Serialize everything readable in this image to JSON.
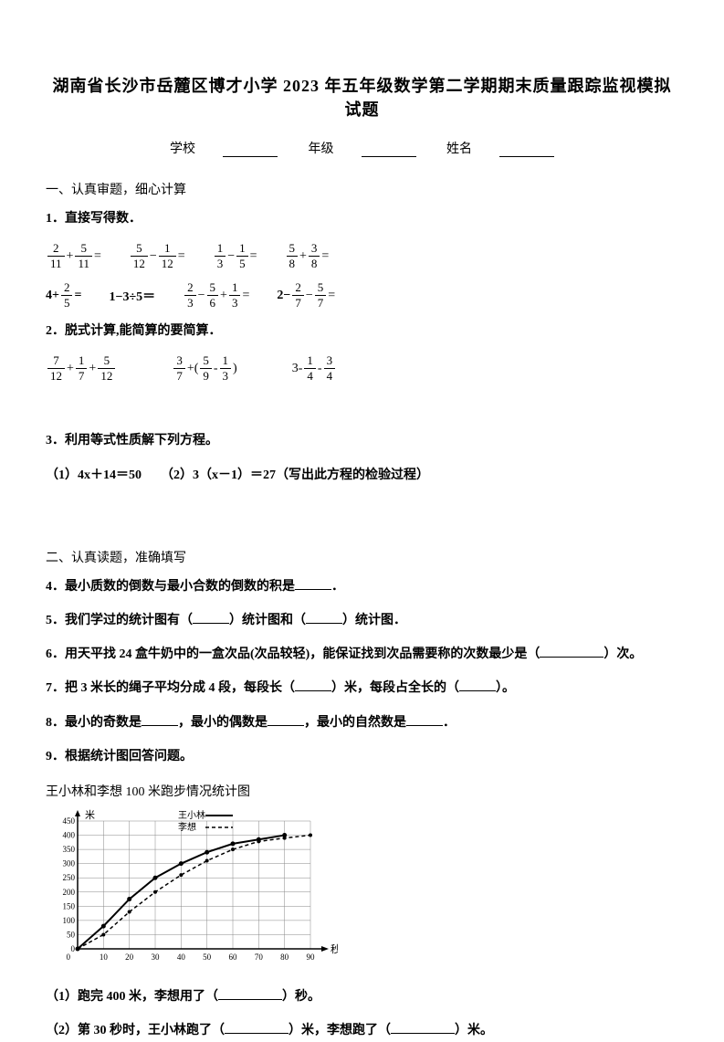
{
  "title": "湖南省长沙市岳麓区博才小学 2023 年五年级数学第二学期期末质量跟踪监视模拟试题",
  "header": {
    "school_label": "学校",
    "grade_label": "年级",
    "name_label": "姓名"
  },
  "section1": {
    "title": "一、认真审题，细心计算",
    "q1": {
      "label": "1．直接写得数．",
      "exprs": [
        {
          "n1": "2",
          "d1": "11",
          "op": "+",
          "n2": "5",
          "d2": "11",
          "eq": "="
        },
        {
          "n1": "5",
          "d1": "12",
          "op": "−",
          "n2": "1",
          "d2": "12",
          "eq": "="
        },
        {
          "n1": "1",
          "d1": "3",
          "op": "−",
          "n2": "1",
          "d2": "5",
          "eq": "="
        },
        {
          "n1": "5",
          "d1": "8",
          "op": "+",
          "n2": "3",
          "d2": "8",
          "eq": "="
        }
      ],
      "exprs2": [
        {
          "pre": "4+",
          "n1": "2",
          "d1": "5",
          "eq": "="
        },
        {
          "text": "1−3÷5＝"
        },
        {
          "n1": "2",
          "d1": "3",
          "op": "−",
          "n2": "5",
          "d2": "6",
          "op2": "+",
          "n3": "1",
          "d3": "3",
          "eq": "="
        },
        {
          "pre": "2−",
          "n1": "2",
          "d1": "7",
          "op": "−",
          "n2": "5",
          "d2": "7",
          "eq": "="
        }
      ]
    },
    "q2": {
      "label": "2．脱式计算,能简算的要简算．",
      "exprs": [
        {
          "n1": "7",
          "d1": "12",
          "op": "+",
          "n2": "1",
          "d2": "7",
          "op2": "+",
          "n3": "5",
          "d3": "12"
        },
        {
          "n1": "3",
          "d1": "7",
          "op": "+(",
          "n2": "5",
          "d2": "9",
          "op2": "-",
          "n3": "1",
          "d3": "3",
          "post": ")"
        },
        {
          "pre": "3-",
          "n1": "1",
          "d1": "4",
          "op": "-",
          "n2": "3",
          "d2": "4"
        }
      ]
    },
    "q3": {
      "label": "3．利用等式性质解下列方程。",
      "sub1": "（1）4x＋14＝50",
      "sub2": "（2）3（x－1）＝27（写出此方程的检验过程）"
    }
  },
  "section2": {
    "title": "二、认真读题，准确填写",
    "q4": "4．最小质数的倒数与最小合数的倒数的积是",
    "q4_end": "．",
    "q5_pre": "5．我们学过的统计图有（",
    "q5_mid": "）统计图和（",
    "q5_end": "）统计图．",
    "q6_pre": "6．用天平找 24 盒牛奶中的一盒次品(次品较轻)，能保证找到次品需要称的次数最少是（",
    "q6_end": "）次。",
    "q7_pre": "7．把 3 米长的绳子平均分成 4 段，每段长（",
    "q7_mid": "）米，每段占全长的（",
    "q7_end": "）。",
    "q8_pre": "8．最小的奇数是",
    "q8_mid1": "，最小的偶数是",
    "q8_mid2": "，最小的自然数是",
    "q8_end": "．",
    "q9": "9．根据统计图回答问题。",
    "chart_title": "王小林和李想 100 米跑步情况统计图",
    "legend1": "王小林",
    "legend2": "李想",
    "q9_1_pre": "（1）跑完 400 米，李想用了（",
    "q9_1_end": "）秒。",
    "q9_2_pre": "（2）第 30 秒时，王小林跑了（",
    "q9_2_mid": "）米，李想跑了（",
    "q9_2_end": "）米。"
  },
  "chart": {
    "y_label": "米",
    "x_label": "秒",
    "y_ticks": [
      0,
      50,
      100,
      150,
      200,
      250,
      300,
      350,
      400,
      450
    ],
    "x_ticks": [
      10,
      20,
      30,
      40,
      50,
      60,
      70,
      80,
      90
    ],
    "line1_points": [
      [
        0,
        0
      ],
      [
        10,
        80
      ],
      [
        20,
        175
      ],
      [
        30,
        250
      ],
      [
        40,
        300
      ],
      [
        50,
        340
      ],
      [
        60,
        370
      ],
      [
        70,
        385
      ],
      [
        80,
        400
      ]
    ],
    "line2_points": [
      [
        0,
        0
      ],
      [
        10,
        50
      ],
      [
        20,
        130
      ],
      [
        30,
        200
      ],
      [
        40,
        260
      ],
      [
        50,
        310
      ],
      [
        60,
        350
      ],
      [
        70,
        378
      ],
      [
        80,
        390
      ],
      [
        90,
        400
      ]
    ],
    "grid_color": "#000000",
    "bg_color": "#ffffff"
  }
}
